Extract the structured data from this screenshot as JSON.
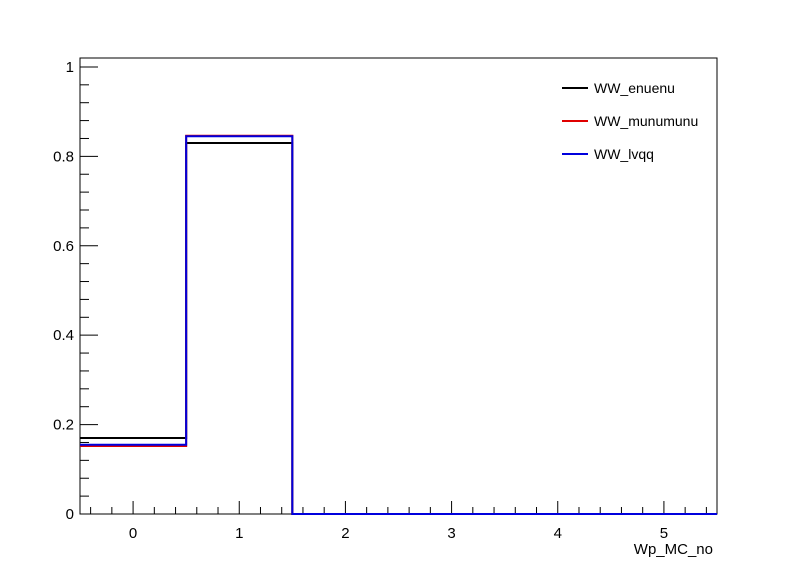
{
  "chart_data": {
    "type": "line",
    "style": "step-histogram",
    "xlabel": "Wp_MC_no",
    "ylabel": "",
    "xlim": [
      -0.5,
      5.5
    ],
    "ylim": [
      0,
      1.02
    ],
    "grid": false,
    "legend_position": "top-right",
    "x_ticks": [
      "0",
      "1",
      "2",
      "3",
      "4",
      "5"
    ],
    "y_ticks": [
      "0",
      "0.2",
      "0.4",
      "0.6",
      "0.8",
      "1"
    ],
    "bin_edges": [
      -0.5,
      0.5,
      1.5,
      2.5,
      3.5,
      4.5,
      5.5
    ],
    "series": [
      {
        "name": "WW_enuenu",
        "color": "#000000",
        "values": [
          0.17,
          0.83,
          0,
          0,
          0,
          0
        ]
      },
      {
        "name": "WW_munumunu",
        "color": "#e00000",
        "values": [
          0.152,
          0.846,
          0,
          0,
          0,
          0
        ]
      },
      {
        "name": "WW_lvqq",
        "color": "#0000dd",
        "values": [
          0.155,
          0.845,
          0,
          0,
          0,
          0
        ]
      }
    ]
  }
}
